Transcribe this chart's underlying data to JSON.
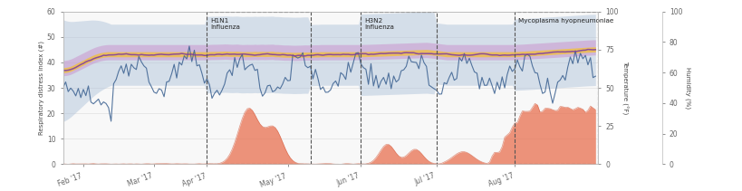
{
  "ylabel_left": "Respiratory distress index (#)",
  "ylabel_right1": "Temperature (°F)",
  "ylabel_right2": "Humidity (%)",
  "ylim_left": [
    0,
    60
  ],
  "yticks_left": [
    0,
    10,
    20,
    30,
    40,
    50,
    60
  ],
  "yticks_right": [
    0,
    25,
    50,
    75,
    100
  ],
  "yticks_right2": [
    0,
    20,
    40,
    60,
    80,
    100
  ],
  "x_tick_labels": [
    "Feb '17",
    "Mar '17",
    "Apr '17",
    "May '17",
    "Jun '17",
    "Jul '17",
    "Aug '17"
  ],
  "total_days": 212,
  "episode_boxes": [
    {
      "label": "H1N1\nInfluenza",
      "xstart": 57,
      "xend": 98
    },
    {
      "label": "H3N2\nInfluenza",
      "xstart": 118,
      "xend": 148
    },
    {
      "label": "Mycoplasma hyopneumoniae",
      "xstart": 179,
      "xend": 212
    }
  ],
  "x_month_ticks": [
    8,
    36,
    57,
    89,
    118,
    148,
    179
  ],
  "colors": {
    "blue_band": "#aabfd8",
    "purple_band": "#c990cc",
    "yellow_band": "#f0c040",
    "blue_line": "#3a6090",
    "purple_line": "#8040a0",
    "orange_fill": "#e87050",
    "orange_line": "#d05030",
    "background": "#ffffff",
    "grid": "#e0e0e0"
  }
}
